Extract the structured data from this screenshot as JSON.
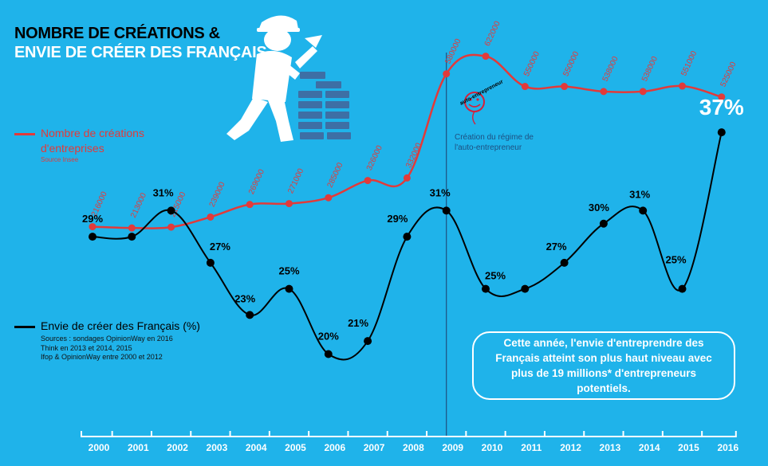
{
  "title": {
    "line1": "NOMBRE DE CRÉATIONS &",
    "line2": "ENVIE DE CRÉER DES FRANÇAIS"
  },
  "legend_creations": {
    "label": "Nombre de créations d'entreprises",
    "source": "Source Insee"
  },
  "legend_envie": {
    "label": "Envie de créer des Français (%)",
    "source_lines": [
      "Sources : sondages OpinionWay en 2016",
      "Think en 2013 et 2014, 2015",
      "Ifop & OpinionWay entre 2000 et 2012"
    ]
  },
  "annotation": {
    "line1": "Création du régime de",
    "line2": "l'auto-entrepreneur",
    "year": "2009"
  },
  "logo_text": "auto-entrepreneur",
  "callout": {
    "text": "Cette année, l'envie d'entreprendre des Français atteint son plus haut niveau avec plus de 19 millions* d'entrepreneurs potentiels."
  },
  "highlight": "37%",
  "colors": {
    "background": "#1fb3ea",
    "creations": "#e23a3a",
    "envie": "#000000",
    "axis": "#ffffff"
  },
  "chart_data": {
    "type": "line",
    "categories": [
      "2000",
      "2001",
      "2002",
      "2003",
      "2004",
      "2005",
      "2006",
      "2007",
      "2008",
      "2009",
      "2010",
      "2011",
      "2012",
      "2013",
      "2014",
      "2015",
      "2016"
    ],
    "series": [
      {
        "name": "Nombre de créations d'entreprises",
        "values": [
          216000,
          213000,
          215000,
          239000,
          269000,
          271000,
          285000,
          326000,
          332000,
          580000,
          622000,
          550000,
          550000,
          538000,
          538000,
          551000,
          525000
        ],
        "labels": [
          "216000",
          "213000",
          "215000",
          "239000",
          "269000",
          "271000",
          "285000",
          "326000",
          "332000",
          "580000",
          "622000",
          "550000",
          "550000",
          "538000",
          "538000",
          "551000",
          "525000"
        ]
      },
      {
        "name": "Envie de créer des Français (%)",
        "values": [
          29,
          29,
          31,
          27,
          23,
          25,
          20,
          21,
          29,
          31,
          25,
          25,
          27,
          30,
          31,
          25,
          37
        ],
        "labels": [
          "29%",
          "",
          "31%",
          "27%",
          "23%",
          "25%",
          "20%",
          "21%",
          "29%",
          "31%",
          "25%",
          "",
          "27%",
          "30%",
          "31%",
          "25%",
          "37%"
        ]
      }
    ]
  }
}
